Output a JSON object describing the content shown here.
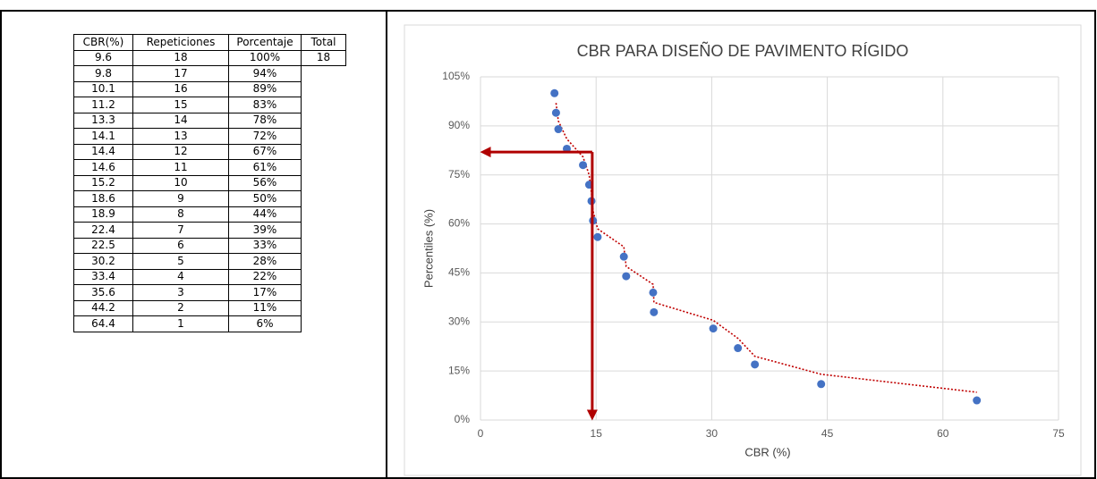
{
  "table": {
    "header": [
      "CBR(%)",
      "Repeticiones",
      "Porcentaje",
      "Total"
    ],
    "rows": [
      [
        "9.6",
        "18",
        "100%",
        "18"
      ],
      [
        "9.8",
        "17",
        "94%"
      ],
      [
        "10.1",
        "16",
        "89%"
      ],
      [
        "11.2",
        "15",
        "83%"
      ],
      [
        "13.3",
        "14",
        "78%"
      ],
      [
        "14.1",
        "13",
        "72%"
      ],
      [
        "14.4",
        "12",
        "67%"
      ],
      [
        "14.6",
        "11",
        "61%"
      ],
      [
        "15.2",
        "10",
        "56%"
      ],
      [
        "18.6",
        "9",
        "50%"
      ],
      [
        "18.9",
        "8",
        "44%"
      ],
      [
        "22.4",
        "7",
        "39%"
      ],
      [
        "22.5",
        "6",
        "33%"
      ],
      [
        "30.2",
        "5",
        "28%"
      ],
      [
        "33.4",
        "4",
        "22%"
      ],
      [
        "35.6",
        "3",
        "17%"
      ],
      [
        "44.2",
        "2",
        "11%"
      ],
      [
        "64.4",
        "1",
        "6%"
      ]
    ]
  },
  "chart_data": {
    "type": "scatter",
    "title": "CBR PARA DISEÑO DE PAVIMENTO RÍGIDO",
    "x_label": "CBR (%)",
    "y_label": "Percentiles (%)",
    "x": [
      9.6,
      9.8,
      10.1,
      11.2,
      13.3,
      14.1,
      14.4,
      14.6,
      15.2,
      18.6,
      18.9,
      22.4,
      22.5,
      30.2,
      33.4,
      35.6,
      44.2,
      64.4
    ],
    "values": [
      100,
      94,
      89,
      83,
      78,
      72,
      67,
      61,
      56,
      50,
      44,
      39,
      33,
      28,
      22,
      17,
      11,
      6
    ],
    "color": "#4472c4",
    "trendline": {
      "type": "moving_average",
      "period": 2,
      "color": "#c00000"
    },
    "guide": {
      "x": 14.5,
      "y": 82,
      "color": "#b00000"
    },
    "xlim": [
      0,
      75
    ],
    "xticks": [
      0,
      15,
      30,
      45,
      60,
      75
    ],
    "ylim": [
      0,
      105
    ],
    "yticks": [
      {
        "value": 0,
        "label": "0%"
      },
      {
        "value": 15,
        "label": "15%"
      },
      {
        "value": 30,
        "label": "30%"
      },
      {
        "value": 45,
        "label": "45%"
      },
      {
        "value": 60,
        "label": "60%"
      },
      {
        "value": 75,
        "label": "75%"
      },
      {
        "value": 90,
        "label": "90%"
      },
      {
        "value": 105,
        "label": "105%"
      }
    ],
    "grid": true
  }
}
